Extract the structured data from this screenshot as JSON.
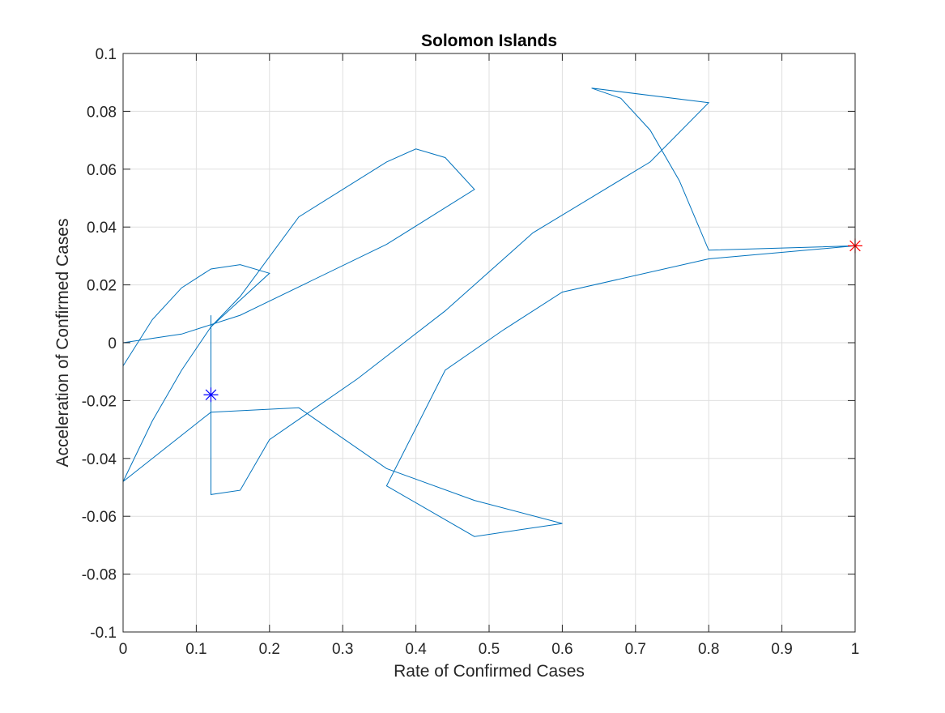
{
  "chart_data": {
    "type": "line",
    "title": "Solomon Islands",
    "xlabel": "Rate of Confirmed Cases",
    "ylabel": "Acceleration of Confirmed Cases",
    "xlim": [
      0,
      1
    ],
    "ylim": [
      -0.1,
      0.1
    ],
    "grid": true,
    "x_ticks": [
      0,
      0.1,
      0.2,
      0.3,
      0.4,
      0.5,
      0.6,
      0.7,
      0.8,
      0.9,
      1
    ],
    "x_tick_labels": [
      "0",
      "0.1",
      "0.2",
      "0.3",
      "0.4",
      "0.5",
      "0.6",
      "0.7",
      "0.8",
      "0.9",
      "1"
    ],
    "y_ticks": [
      -0.1,
      -0.08,
      -0.06,
      -0.04,
      -0.02,
      0,
      0.02,
      0.04,
      0.06,
      0.08,
      0.1
    ],
    "y_tick_labels": [
      "-0.1",
      "-0.08",
      "-0.06",
      "-0.04",
      "-0.02",
      "0",
      "0.02",
      "0.04",
      "0.06",
      "0.08",
      "0.1"
    ],
    "series": [
      {
        "color": "#0072bd",
        "points": [
          [
            0.12,
            0.0095
          ],
          [
            0.12,
            -0.0525
          ],
          [
            0.16,
            -0.051
          ],
          [
            0.2,
            -0.0335
          ],
          [
            0.32,
            -0.0125
          ],
          [
            0.44,
            0.011
          ],
          [
            0.56,
            0.038
          ],
          [
            0.72,
            0.0625
          ],
          [
            0.8,
            0.083
          ],
          [
            0.64,
            0.088
          ],
          [
            0.68,
            0.0845
          ],
          [
            0.72,
            0.0735
          ],
          [
            0.76,
            0.056
          ],
          [
            0.8,
            0.032
          ],
          [
            1.0,
            0.0335
          ],
          [
            0.8,
            0.029
          ],
          [
            0.6,
            0.0175
          ],
          [
            0.52,
            0.0045
          ],
          [
            0.44,
            -0.0095
          ],
          [
            0.36,
            -0.0495
          ],
          [
            0.48,
            -0.067
          ],
          [
            0.6,
            -0.0625
          ],
          [
            0.48,
            -0.0545
          ],
          [
            0.36,
            -0.0435
          ],
          [
            0.24,
            -0.0225
          ],
          [
            0.12,
            -0.024
          ],
          [
            0.0,
            -0.048
          ],
          [
            0.04,
            -0.027
          ],
          [
            0.08,
            -0.0095
          ],
          [
            0.12,
            0.0055
          ],
          [
            0.2,
            0.024
          ],
          [
            0.16,
            0.027
          ],
          [
            0.12,
            0.0255
          ],
          [
            0.08,
            0.019
          ],
          [
            0.04,
            0.008
          ],
          [
            0.0,
            -0.008
          ]
        ]
      },
      {
        "color": "#0072bd",
        "points": [
          [
            0.0,
            0.0
          ],
          [
            0.08,
            0.003
          ],
          [
            0.16,
            0.0095
          ],
          [
            0.36,
            0.034
          ],
          [
            0.48,
            0.053
          ],
          [
            0.44,
            0.064
          ],
          [
            0.4,
            0.067
          ],
          [
            0.36,
            0.0625
          ],
          [
            0.24,
            0.0435
          ],
          [
            0.16,
            0.016
          ],
          [
            0.12,
            0.0055
          ]
        ]
      }
    ],
    "markers": [
      {
        "x": 0.12,
        "y": -0.018,
        "color": "#0000ff",
        "symbol": "asterisk"
      },
      {
        "x": 1.0,
        "y": 0.0335,
        "color": "#ff0000",
        "symbol": "asterisk"
      }
    ]
  }
}
